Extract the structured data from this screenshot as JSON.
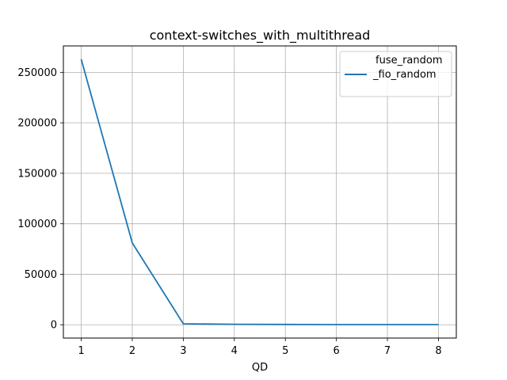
{
  "chart_data": {
    "type": "line",
    "title": "context-switches_with_multithread",
    "xlabel": "QD",
    "ylabel": "",
    "x": [
      1,
      2,
      3,
      4,
      5,
      6,
      7,
      8
    ],
    "xticks": [
      "1",
      "2",
      "3",
      "4",
      "5",
      "6",
      "7",
      "8"
    ],
    "xlim": [
      0.65,
      8.35
    ],
    "yticks": [
      0,
      50000,
      100000,
      150000,
      200000,
      250000
    ],
    "ytick_labels": [
      "0",
      "50000",
      "100000",
      "150000",
      "200000",
      "250000"
    ],
    "ylim": [
      -13150,
      276150
    ],
    "grid": true,
    "legend": {
      "position": "top-right",
      "entries": [
        "fuse_random\n_fio_random"
      ]
    },
    "series": [
      {
        "name": "fuse_random\n_fio_random",
        "color": "#1f77b4",
        "values": [
          263000,
          81000,
          1000,
          500,
          300,
          200,
          200,
          200
        ]
      }
    ]
  }
}
